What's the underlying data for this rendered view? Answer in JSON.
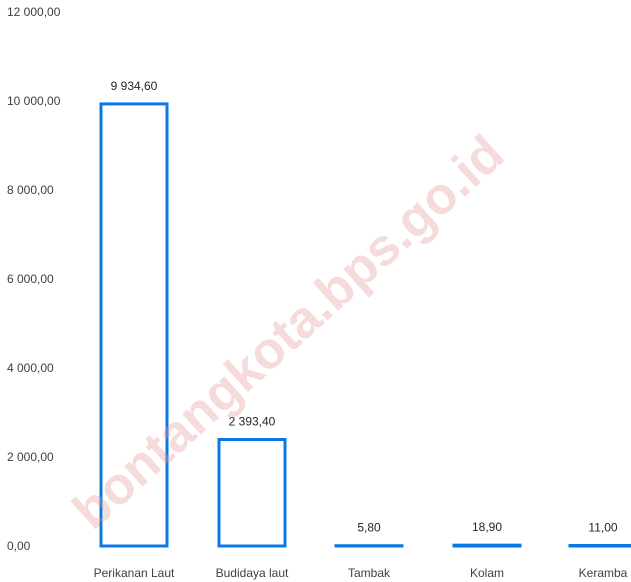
{
  "chart_data": {
    "type": "bar",
    "categories": [
      "Perikanan Laut",
      "Budidaya laut",
      "Tambak",
      "Kolam",
      "Keramba"
    ],
    "values": [
      9934.6,
      2393.4,
      5.8,
      18.9,
      11.0
    ],
    "value_labels": [
      "9 934,60",
      "2 393,40",
      "5,80",
      "18,90",
      "11,00"
    ],
    "y_ticks": [
      0,
      2000,
      4000,
      6000,
      8000,
      10000,
      12000
    ],
    "y_tick_labels": [
      "0,00",
      "2 000,00",
      "4 000,00",
      "6 000,00",
      "8 000,00",
      "10 000,00",
      "12 000,00"
    ],
    "ylim": [
      0,
      12000
    ],
    "title": "",
    "xlabel": "",
    "ylabel": "",
    "grid": false,
    "legend": "none",
    "bar_style": "outline",
    "bar_color": "#0a78e6"
  },
  "watermark": "bontangkota.bps.go.id"
}
